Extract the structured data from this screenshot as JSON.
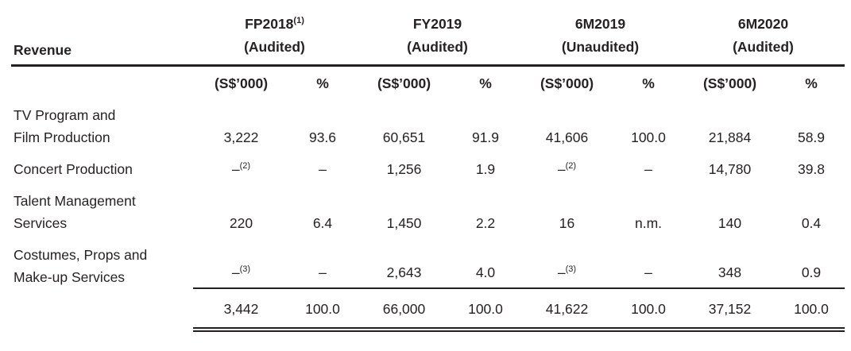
{
  "table": {
    "row_header_label": "Revenue",
    "column_groups": [
      {
        "period": "FP2018",
        "period_sup": "(1)",
        "status": "(Audited)"
      },
      {
        "period": "FY2019",
        "period_sup": "",
        "status": "(Audited)"
      },
      {
        "period": "6M2019",
        "period_sup": "",
        "status": "(Unaudited)"
      },
      {
        "period": "6M2020",
        "period_sup": "",
        "status": "(Audited)"
      }
    ],
    "subheaders": {
      "amount": "(S$’000)",
      "percent": "%"
    },
    "rows": [
      {
        "label_lines": [
          "TV Program and",
          "Film Production"
        ],
        "cells": [
          {
            "text": "3,222"
          },
          {
            "text": "93.6"
          },
          {
            "text": "60,651"
          },
          {
            "text": "91.9"
          },
          {
            "text": "41,606"
          },
          {
            "text": "100.0"
          },
          {
            "text": "21,884"
          },
          {
            "text": "58.9"
          }
        ]
      },
      {
        "label_lines": [
          "Concert Production"
        ],
        "cells": [
          {
            "text": "–",
            "sup": "(2)"
          },
          {
            "text": "–"
          },
          {
            "text": "1,256"
          },
          {
            "text": "1.9"
          },
          {
            "text": "–",
            "sup": "(2)"
          },
          {
            "text": "–"
          },
          {
            "text": "14,780"
          },
          {
            "text": "39.8"
          }
        ]
      },
      {
        "label_lines": [
          "Talent Management",
          "Services"
        ],
        "cells": [
          {
            "text": "220"
          },
          {
            "text": "6.4"
          },
          {
            "text": "1,450"
          },
          {
            "text": "2.2"
          },
          {
            "text": "16"
          },
          {
            "text": "n.m."
          },
          {
            "text": "140"
          },
          {
            "text": "0.4"
          }
        ]
      },
      {
        "label_lines": [
          "Costumes, Props and",
          "Make-up Services"
        ],
        "cells": [
          {
            "text": "–",
            "sup": "(3)"
          },
          {
            "text": "–"
          },
          {
            "text": "2,643"
          },
          {
            "text": "4.0"
          },
          {
            "text": "–",
            "sup": "(3)"
          },
          {
            "text": "–"
          },
          {
            "text": "348"
          },
          {
            "text": "0.9"
          }
        ]
      }
    ],
    "total_row": {
      "cells": [
        {
          "text": "3,442"
        },
        {
          "text": "100.0"
        },
        {
          "text": "66,000"
        },
        {
          "text": "100.0"
        },
        {
          "text": "41,622"
        },
        {
          "text": "100.0"
        },
        {
          "text": "37,152"
        },
        {
          "text": "100.0"
        }
      ]
    }
  }
}
